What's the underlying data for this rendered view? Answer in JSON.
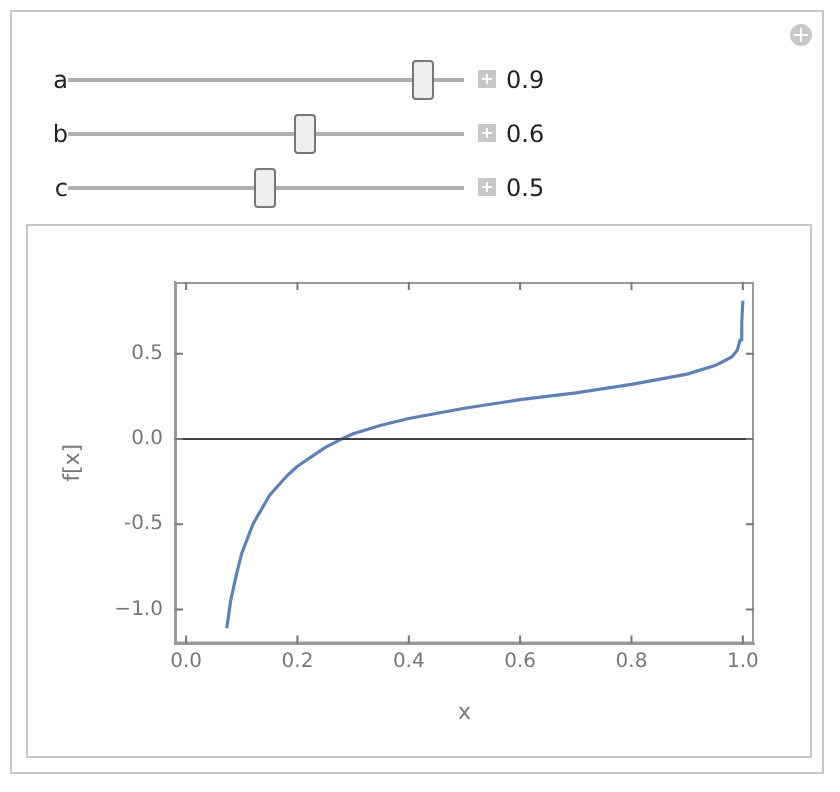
{
  "chart_data": {
    "type": "line",
    "xlabel": "x",
    "ylabel": "f[x]",
    "annotations": [
      "a",
      "0.9",
      "b",
      "0.6",
      "c",
      "0.5"
    ],
    "x": [
      0.073,
      0.08,
      0.09,
      0.1,
      0.12,
      0.15,
      0.18,
      0.2,
      0.25,
      0.28,
      0.3,
      0.35,
      0.4,
      0.5,
      0.6,
      0.7,
      0.8,
      0.9,
      0.95,
      0.98,
      0.99,
      0.995,
      0.998,
      1.0
    ],
    "series": [
      {
        "color": "#5e81b5",
        "values": [
          -1.11,
          -0.95,
          -0.8,
          -0.67,
          -0.5,
          -0.33,
          -0.22,
          -0.16,
          -0.05,
          0.0,
          0.03,
          0.08,
          0.12,
          0.18,
          0.23,
          0.27,
          0.32,
          0.38,
          0.43,
          0.48,
          0.52,
          0.58,
          0.68,
          0.81
        ]
      }
    ],
    "xlim": [
      -0.02,
      1.02
    ],
    "ylim": [
      -1.2,
      0.92
    ],
    "xticks": [
      {
        "value": 0,
        "label": "0.0"
      },
      0.2,
      0.4,
      0.6,
      0.8,
      {
        "value": 1,
        "label": "1.0"
      }
    ],
    "yticks": [
      {
        "value": -1,
        "label": "−1.0"
      },
      -0.5,
      {
        "value": 0,
        "label": "0.0"
      },
      0.5
    ],
    "ref_lines": [
      {
        "axis": "y",
        "value": 0,
        "color": "#404040"
      }
    ],
    "grid": false,
    "legend": false,
    "marker": "none",
    "line_style": "solid"
  }
}
